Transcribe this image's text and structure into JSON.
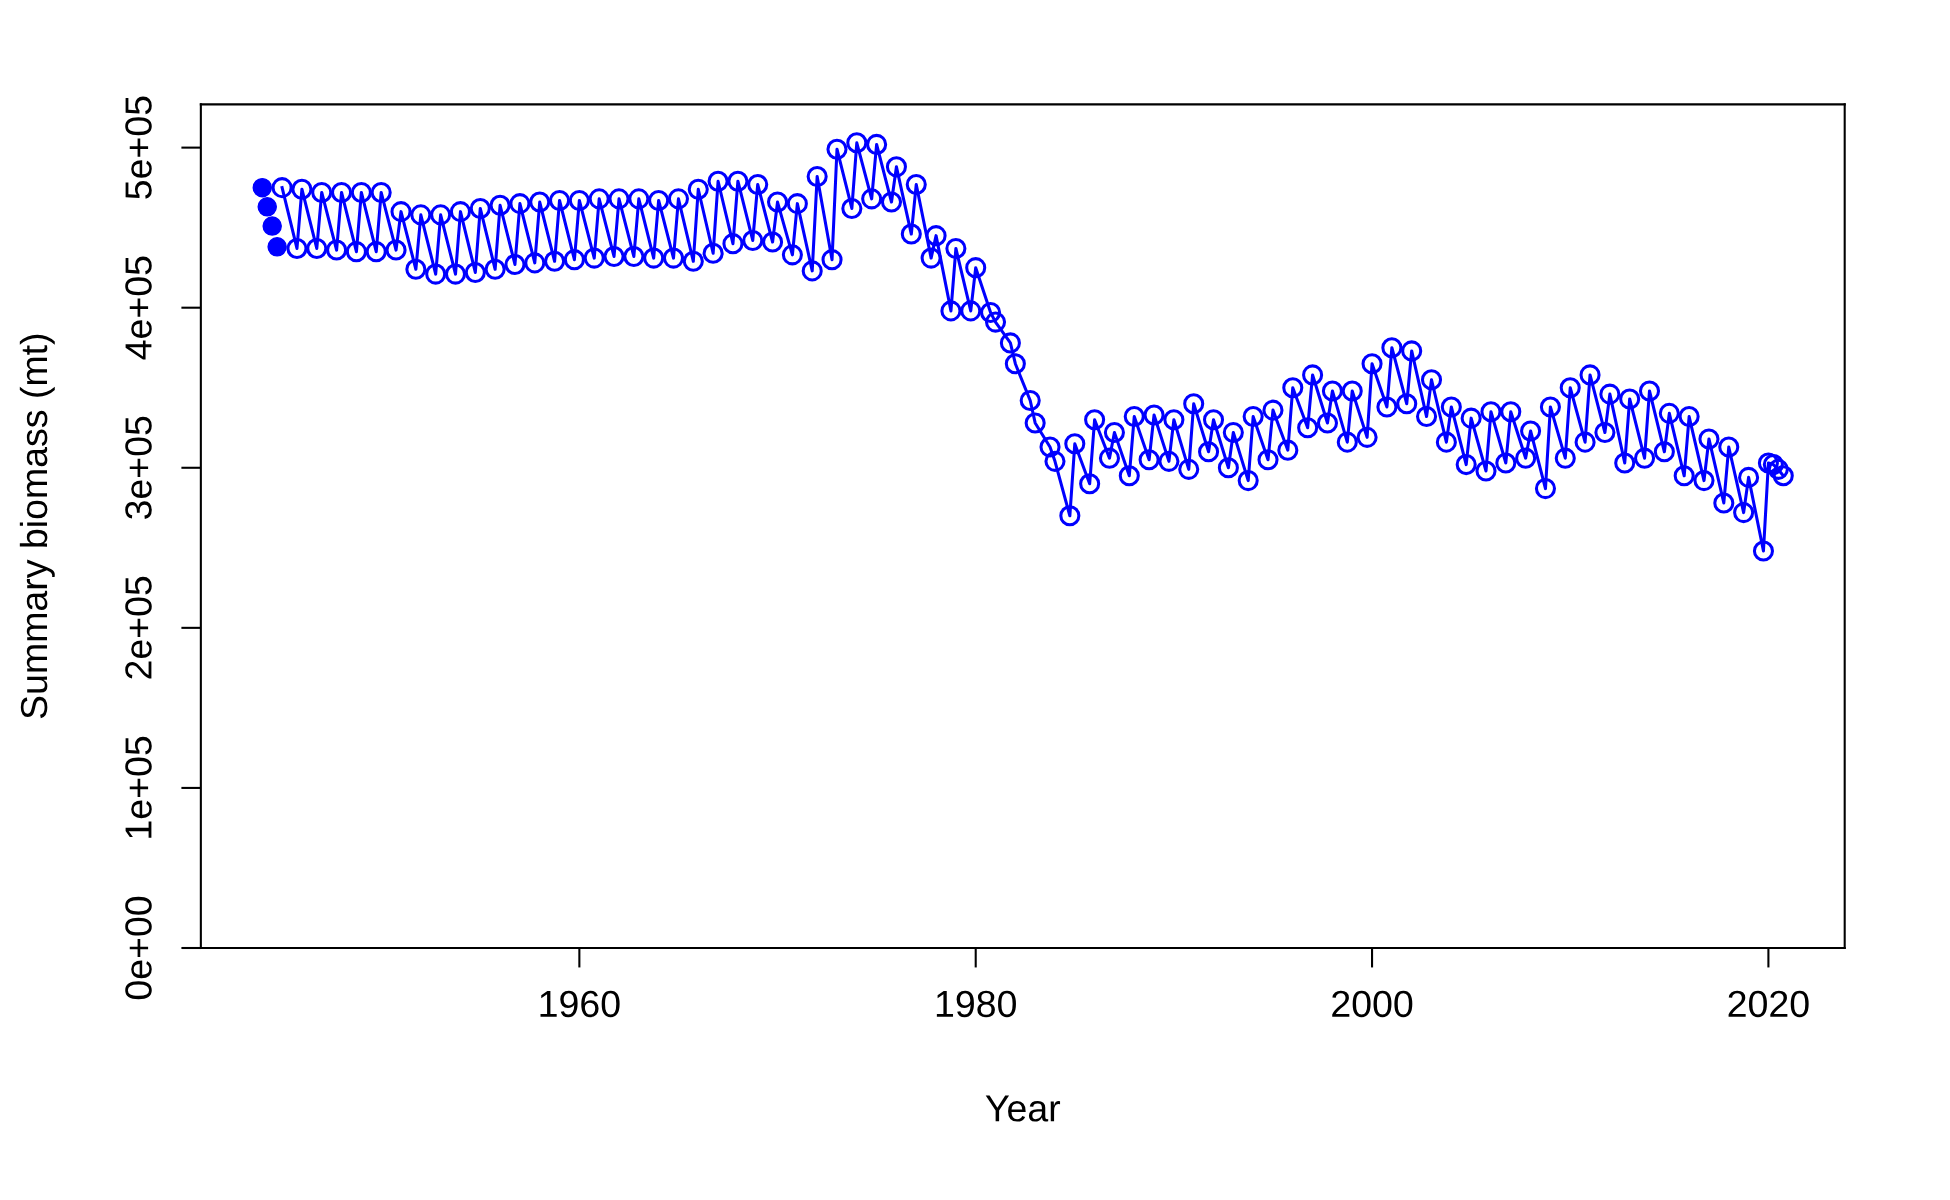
{
  "chart_data": {
    "type": "line",
    "xlabel": "Year",
    "ylabel": "Summary biomass (mt)",
    "xlim": [
      1940.9,
      2023.85
    ],
    "xticks": [
      1960,
      1980,
      2000,
      2020
    ],
    "ylim": [
      0,
      527000
    ],
    "yticks": [
      {
        "value": 0,
        "label": "0e+00"
      },
      {
        "value": 100000,
        "label": "1e+05"
      },
      {
        "value": 200000,
        "label": "2e+05"
      },
      {
        "value": 300000,
        "label": "3e+05"
      },
      {
        "value": 400000,
        "label": "4e+05"
      },
      {
        "value": 500000,
        "label": "5e+05"
      }
    ],
    "marker": "circle",
    "grid": false,
    "legend": false,
    "series": [
      {
        "type": "scatter",
        "color": "#0000ff",
        "x": [
          1944,
          1944.25,
          1944.5,
          1944.75
        ],
        "values": [
          475000,
          463000,
          451000,
          438000
        ]
      },
      {
        "color": "#0000ff",
        "x": [
          1945,
          1945.75,
          1946,
          1946.75,
          1947,
          1947.75,
          1948,
          1948.75,
          1949,
          1949.75,
          1950,
          1950.75,
          1951,
          1951.75,
          1952,
          1952.75,
          1953,
          1953.75,
          1954,
          1954.75,
          1955,
          1955.75,
          1956,
          1956.75,
          1957,
          1957.75,
          1958,
          1958.75,
          1959,
          1959.75,
          1960,
          1960.75,
          1961,
          1961.75,
          1962,
          1962.75,
          1963,
          1963.75,
          1964,
          1964.75,
          1965,
          1965.75,
          1966,
          1966.75,
          1967,
          1967.75,
          1968,
          1968.75,
          1969,
          1969.75,
          1970,
          1970.75,
          1971,
          1971.75,
          1972,
          1972.75,
          1973,
          1973.75,
          1974,
          1974.75,
          1975,
          1975.75,
          1976,
          1976.75,
          1977,
          1977.75,
          1978,
          1978.75,
          1979,
          1979.75,
          1980,
          1980.75,
          1981,
          1981.75,
          1982,
          1982.75,
          1983,
          1983.75,
          1984,
          1984.75,
          1985,
          1985.75,
          1986,
          1986.75,
          1987,
          1987.75,
          1988,
          1988.75,
          1989,
          1989.75,
          1990,
          1990.75,
          1991,
          1991.75,
          1992,
          1992.75,
          1993,
          1993.75,
          1994,
          1994.75,
          1995,
          1995.75,
          1996,
          1996.75,
          1997,
          1997.75,
          1998,
          1998.75,
          1999,
          1999.75,
          2000,
          2000.75,
          2001,
          2001.75,
          2002,
          2002.75,
          2003,
          2003.75,
          2004,
          2004.75,
          2005,
          2005.75,
          2006,
          2006.75,
          2007,
          2007.75,
          2008,
          2008.75,
          2009,
          2009.75,
          2010,
          2010.75,
          2011,
          2011.75,
          2012,
          2012.75,
          2013,
          2013.75,
          2014,
          2014.75,
          2015,
          2015.75,
          2016,
          2016.75,
          2017,
          2017.75,
          2018,
          2018.75,
          2019,
          2019.75,
          2020,
          2020.25,
          2020.5,
          2020.75
        ],
        "values": [
          475000,
          437000,
          474000,
          437000,
          472000,
          436000,
          472000,
          435000,
          472000,
          435000,
          472000,
          436000,
          460000,
          424000,
          458000,
          421000,
          458000,
          421000,
          460000,
          422000,
          462000,
          424000,
          464000,
          427000,
          465000,
          428000,
          466000,
          429000,
          467000,
          430000,
          467000,
          431000,
          468000,
          432000,
          468000,
          432000,
          468000,
          431000,
          467000,
          431000,
          468000,
          429000,
          474000,
          434000,
          479000,
          440000,
          479000,
          442000,
          477000,
          441000,
          466000,
          433000,
          465000,
          423000,
          482000,
          430000,
          499000,
          462000,
          503000,
          468000,
          502000,
          466000,
          488000,
          446000,
          477000,
          431000,
          445000,
          398000,
          437000,
          398000,
          425000,
          397000,
          391000,
          378000,
          365000,
          342000,
          328000,
          313000,
          304000,
          270000,
          315000,
          290000,
          330000,
          306000,
          322000,
          295000,
          332000,
          305000,
          333000,
          304000,
          330000,
          299000,
          340000,
          310000,
          330000,
          300000,
          322000,
          292000,
          332000,
          305000,
          336000,
          311000,
          350000,
          325000,
          358000,
          328000,
          348000,
          316000,
          348000,
          319000,
          365000,
          338000,
          375000,
          340000,
          373000,
          332000,
          355000,
          316000,
          338000,
          302000,
          331000,
          298000,
          335000,
          303000,
          335000,
          306000,
          323000,
          287000,
          338000,
          306000,
          350000,
          316000,
          358000,
          322000,
          346000,
          303000,
          343000,
          306000,
          348000,
          310000,
          334000,
          295000,
          332000,
          292000,
          318000,
          278000,
          313000,
          272000,
          294000,
          248000,
          303000,
          302000,
          299000,
          295000
        ]
      }
    ]
  }
}
